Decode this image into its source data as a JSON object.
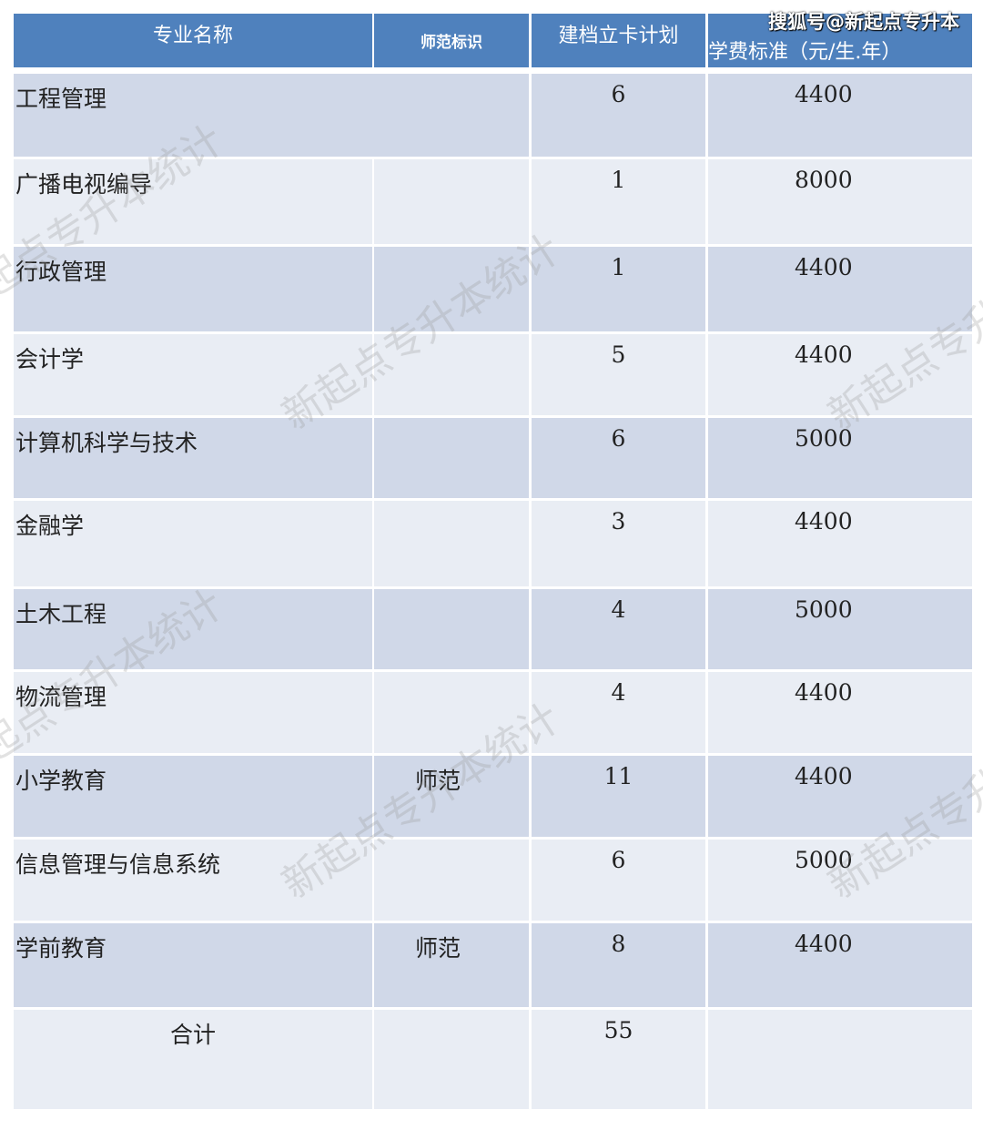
{
  "header": {
    "columns": [
      "专业名称",
      "师范标识",
      "建档立卡计划",
      "学费标准（元/生.年）"
    ]
  },
  "rows": [
    {
      "name": "工程管理",
      "normal": "",
      "plan": "6",
      "fee": "4400",
      "merged": true
    },
    {
      "name": "广播电视编导",
      "normal": "",
      "plan": "1",
      "fee": "8000"
    },
    {
      "name": "行政管理",
      "normal": "",
      "plan": "1",
      "fee": "4400"
    },
    {
      "name": "会计学",
      "normal": "",
      "plan": "5",
      "fee": "4400"
    },
    {
      "name": "计算机科学与技术",
      "normal": "",
      "plan": "6",
      "fee": "5000"
    },
    {
      "name": "金融学",
      "normal": "",
      "plan": "3",
      "fee": "4400"
    },
    {
      "name": "土木工程",
      "normal": "",
      "plan": "4",
      "fee": "5000"
    },
    {
      "name": "物流管理",
      "normal": "",
      "plan": "4",
      "fee": "4400"
    },
    {
      "name": "小学教育",
      "normal": "师范",
      "plan": "11",
      "fee": "4400"
    },
    {
      "name": "信息管理与信息系统",
      "normal": "",
      "plan": "6",
      "fee": "5000"
    },
    {
      "name": "学前教育",
      "normal": "师范",
      "plan": "8",
      "fee": "4400"
    }
  ],
  "total": {
    "label": "合计",
    "plan": "55",
    "fee": ""
  },
  "watermark": "新起点专升本统计",
  "source_watermark": "搜狐号@新起点专升本",
  "colors": {
    "header": "#4f81bd",
    "row_odd": "#d0d8e8",
    "row_even": "#e9edf4"
  }
}
